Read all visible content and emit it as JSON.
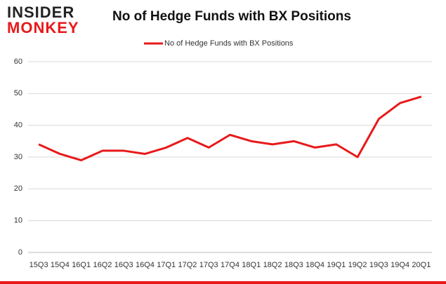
{
  "logo": {
    "top": "INSIDER",
    "bottom": "MONKEY"
  },
  "chart_data": {
    "type": "line",
    "title": "No of Hedge Funds with BX Positions",
    "categories": [
      "15Q3",
      "15Q4",
      "16Q1",
      "16Q2",
      "16Q3",
      "16Q4",
      "17Q1",
      "17Q2",
      "17Q3",
      "17Q4",
      "18Q1",
      "18Q2",
      "18Q3",
      "18Q4",
      "19Q1",
      "19Q2",
      "19Q3",
      "19Q4",
      "20Q1"
    ],
    "series": [
      {
        "name": "No of Hedge Funds with BX Positions",
        "color": "#e8191a",
        "values": [
          34,
          31,
          29,
          32,
          32,
          31,
          33,
          36,
          33,
          37,
          35,
          34,
          35,
          33,
          34,
          30,
          42,
          47,
          49
        ]
      }
    ],
    "ylim": [
      0,
      60
    ],
    "yticks": [
      0,
      10,
      20,
      30,
      40,
      50,
      60
    ],
    "grid": true,
    "legend": "top"
  }
}
